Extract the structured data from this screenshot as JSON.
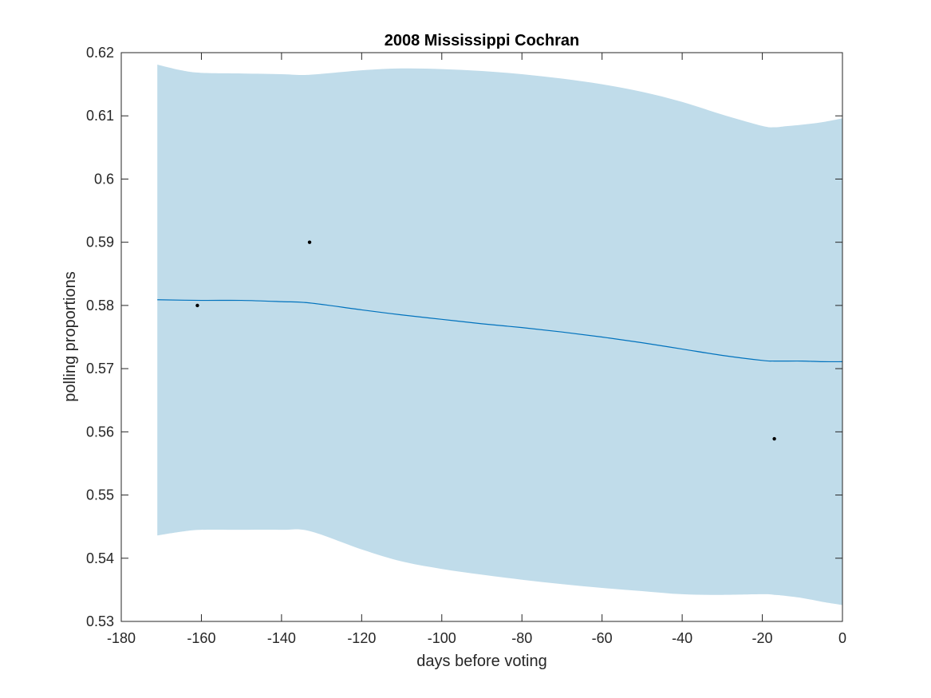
{
  "chart_data": {
    "type": "line",
    "title": "2008 Mississippi Cochran",
    "xlabel": "days before voting",
    "ylabel": "polling proportions",
    "xlim": [
      -180,
      0
    ],
    "ylim": [
      0.53,
      0.62
    ],
    "xticks": [
      -180,
      -160,
      -140,
      -120,
      -100,
      -80,
      -60,
      -40,
      -20,
      0
    ],
    "yticks": [
      0.53,
      0.54,
      0.55,
      0.56,
      0.57,
      0.58,
      0.59,
      0.6,
      0.61,
      0.62
    ],
    "grid": false,
    "colors": {
      "band": "#c0dcea",
      "line": "#0072bd",
      "points": "#000000",
      "axes": "#262626"
    },
    "series": [
      {
        "type": "line",
        "x": [
          -171,
          -160,
          -150,
          -140,
          -133,
          -120,
          -110,
          -100,
          -90,
          -80,
          -70,
          -60,
          -50,
          -40,
          -30,
          -20,
          -17,
          -10,
          -5,
          0
        ],
        "y": [
          0.5809,
          0.5808,
          0.5808,
          0.5806,
          0.5804,
          0.5793,
          0.5785,
          0.5778,
          0.5771,
          0.5765,
          0.5758,
          0.575,
          0.5741,
          0.5731,
          0.5721,
          0.5713,
          0.5712,
          0.5712,
          0.5711,
          0.5711
        ]
      },
      {
        "type": "band",
        "x": [
          -171,
          -165,
          -160,
          -150,
          -140,
          -133,
          -120,
          -110,
          -100,
          -90,
          -80,
          -70,
          -60,
          -50,
          -40,
          -30,
          -20,
          -17,
          -15,
          -10,
          -5,
          0
        ],
        "upper": [
          0.6181,
          0.6172,
          0.6168,
          0.6167,
          0.6166,
          0.6165,
          0.6172,
          0.6175,
          0.6174,
          0.6171,
          0.6166,
          0.6159,
          0.615,
          0.6138,
          0.6122,
          0.6102,
          0.6084,
          0.6082,
          0.6083,
          0.6086,
          0.609,
          0.6096
        ],
        "lower": [
          0.5436,
          0.5442,
          0.5445,
          0.5445,
          0.5445,
          0.5443,
          0.5414,
          0.5395,
          0.5383,
          0.5374,
          0.5366,
          0.5359,
          0.5353,
          0.5348,
          0.5343,
          0.5342,
          0.5343,
          0.5342,
          0.5341,
          0.5337,
          0.5331,
          0.5326
        ]
      },
      {
        "type": "scatter",
        "x": [
          -161,
          -133,
          -17
        ],
        "y": [
          0.58,
          0.59,
          0.5589
        ]
      }
    ]
  }
}
